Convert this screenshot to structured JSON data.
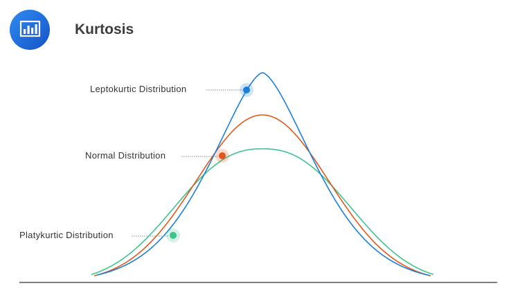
{
  "header": {
    "title": "Kurtosis",
    "icon": "bar-chart-icon",
    "icon_color": "#1b6fdc"
  },
  "distributions": [
    {
      "id": "leptokurtic",
      "label": "Leptokurtic  Distribution",
      "color": "#1a7fd9"
    },
    {
      "id": "normal",
      "label": "Normal  Distribution",
      "color": "#e2561a"
    },
    {
      "id": "platykurtic",
      "label": "Platykurtic Distribution",
      "color": "#3cc48c"
    }
  ],
  "baseline_color": "#333333"
}
